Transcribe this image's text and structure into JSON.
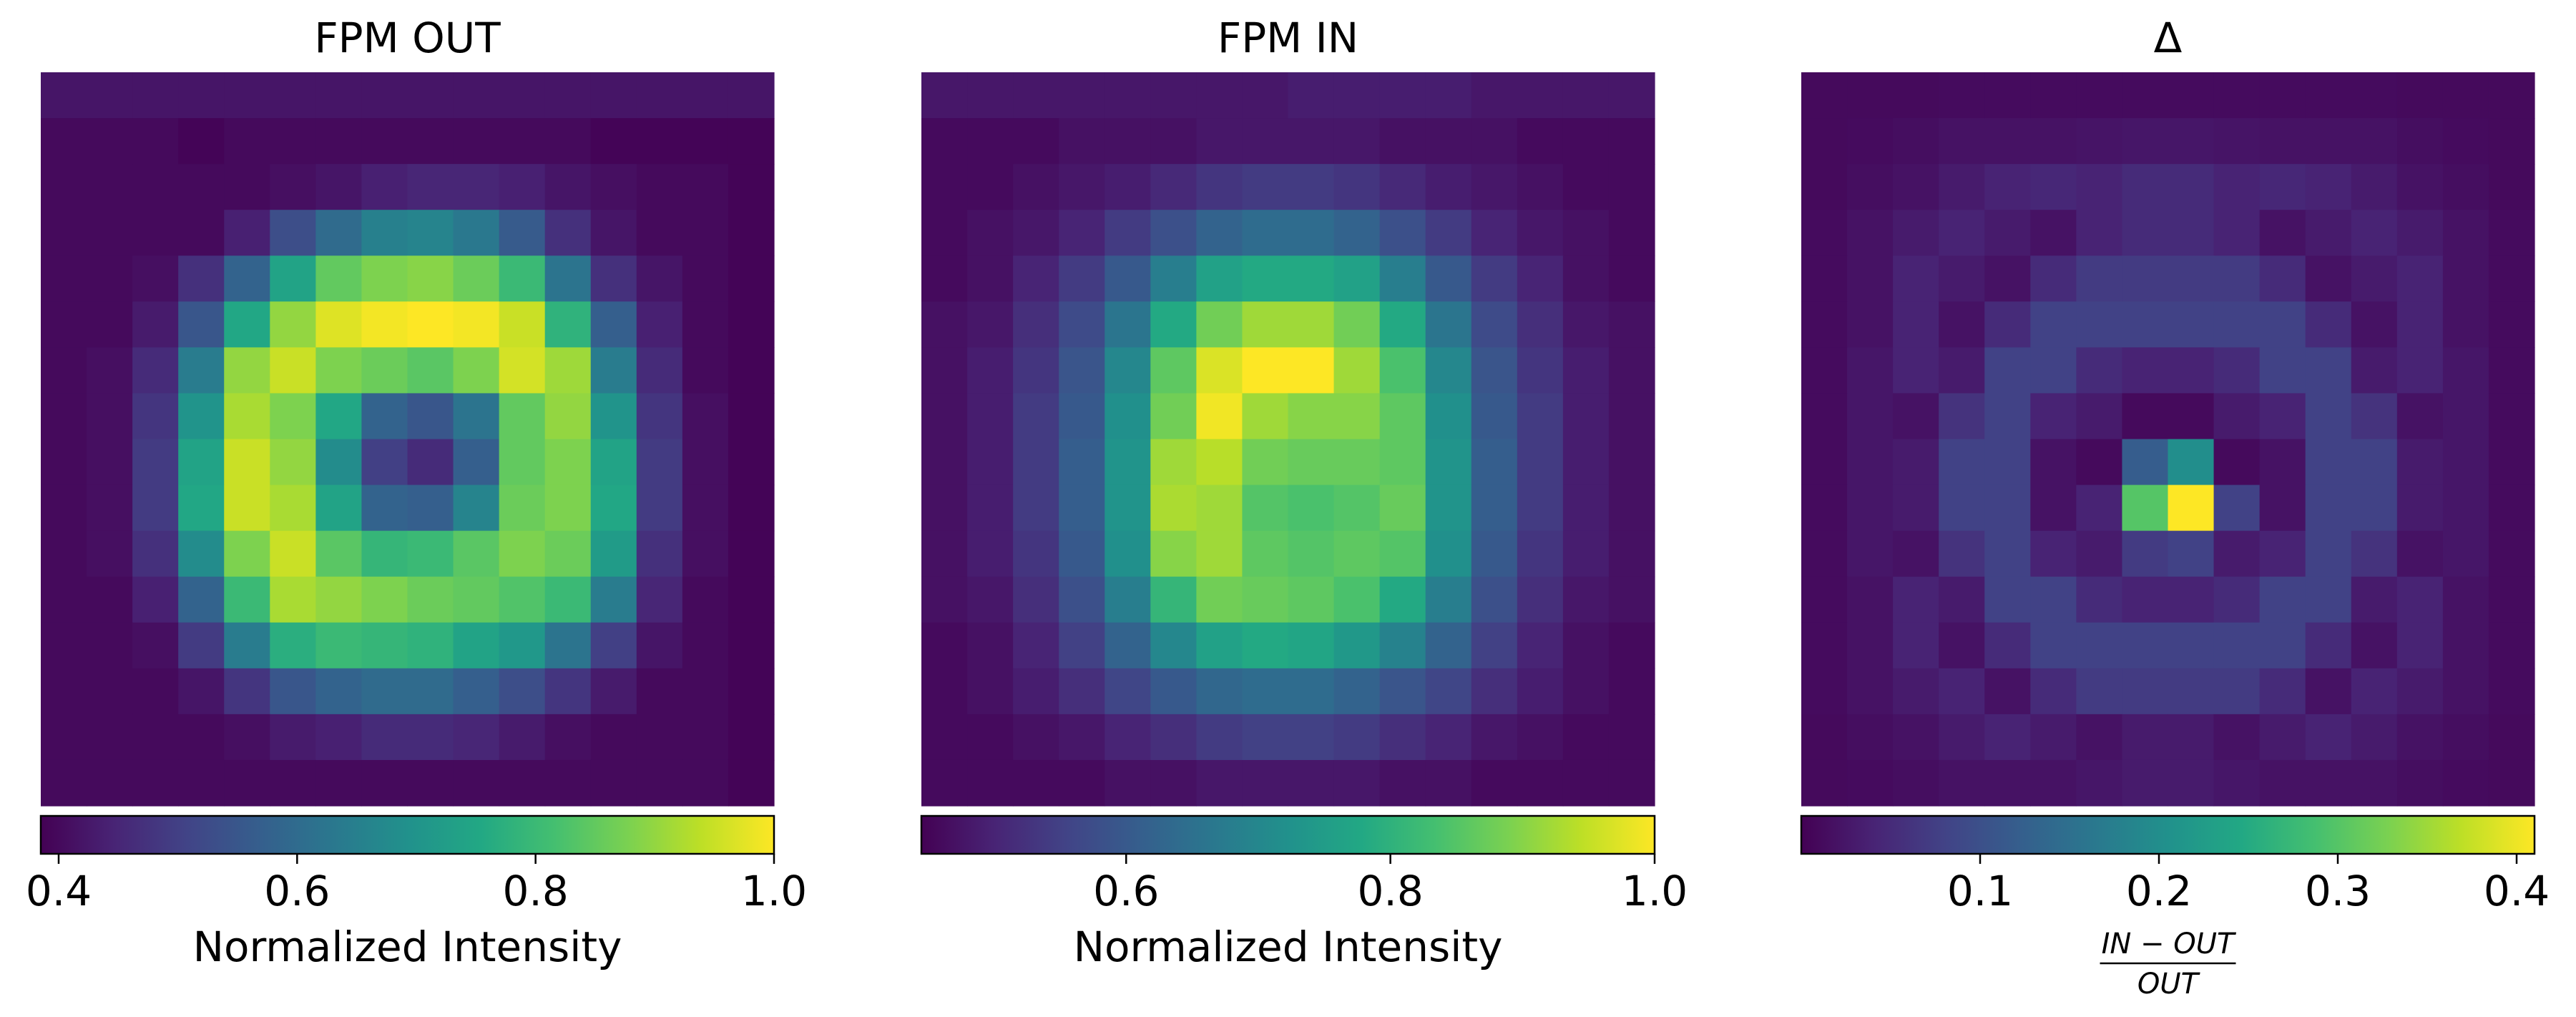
{
  "chart_data": [
    {
      "type": "heatmap",
      "title": "FPM OUT",
      "colormap": "viridis",
      "colorbar": {
        "label": "Normalized Intensity",
        "label_math": null,
        "vmin": 0.385,
        "vmax": 1.0,
        "ticks": [
          0.4,
          0.6,
          0.8,
          1.0
        ],
        "tick_labels": [
          "0.4",
          "0.6",
          "0.8",
          "1.0"
        ]
      },
      "grid": [
        [
          0.42,
          0.42,
          0.42,
          0.42,
          0.42,
          0.42,
          0.42,
          0.42,
          0.42,
          0.42,
          0.42,
          0.42,
          0.42,
          0.42,
          0.42,
          0.42
        ],
        [
          0.4,
          0.4,
          0.4,
          0.39,
          0.4,
          0.4,
          0.4,
          0.4,
          0.4,
          0.4,
          0.4,
          0.4,
          0.39,
          0.39,
          0.39,
          0.39
        ],
        [
          0.4,
          0.4,
          0.4,
          0.4,
          0.4,
          0.41,
          0.42,
          0.44,
          0.45,
          0.45,
          0.44,
          0.42,
          0.41,
          0.4,
          0.4,
          0.39
        ],
        [
          0.4,
          0.4,
          0.4,
          0.4,
          0.44,
          0.53,
          0.6,
          0.65,
          0.66,
          0.63,
          0.56,
          0.47,
          0.42,
          0.4,
          0.4,
          0.39
        ],
        [
          0.4,
          0.4,
          0.41,
          0.47,
          0.58,
          0.74,
          0.85,
          0.88,
          0.89,
          0.86,
          0.8,
          0.62,
          0.47,
          0.42,
          0.4,
          0.39
        ],
        [
          0.4,
          0.4,
          0.43,
          0.55,
          0.75,
          0.9,
          0.97,
          0.99,
          1.0,
          0.99,
          0.95,
          0.78,
          0.57,
          0.44,
          0.4,
          0.39
        ],
        [
          0.4,
          0.41,
          0.46,
          0.64,
          0.9,
          0.95,
          0.88,
          0.86,
          0.84,
          0.88,
          0.96,
          0.91,
          0.64,
          0.46,
          0.4,
          0.39
        ],
        [
          0.4,
          0.41,
          0.48,
          0.7,
          0.92,
          0.88,
          0.75,
          0.58,
          0.55,
          0.62,
          0.85,
          0.9,
          0.7,
          0.48,
          0.41,
          0.39
        ],
        [
          0.4,
          0.41,
          0.49,
          0.74,
          0.95,
          0.9,
          0.68,
          0.5,
          0.46,
          0.57,
          0.85,
          0.88,
          0.74,
          0.49,
          0.41,
          0.39
        ],
        [
          0.4,
          0.41,
          0.49,
          0.75,
          0.95,
          0.92,
          0.74,
          0.58,
          0.57,
          0.66,
          0.86,
          0.88,
          0.75,
          0.49,
          0.41,
          0.39
        ],
        [
          0.4,
          0.41,
          0.47,
          0.68,
          0.88,
          0.95,
          0.84,
          0.79,
          0.8,
          0.84,
          0.88,
          0.86,
          0.72,
          0.47,
          0.41,
          0.39
        ],
        [
          0.4,
          0.4,
          0.44,
          0.58,
          0.8,
          0.92,
          0.9,
          0.88,
          0.86,
          0.85,
          0.83,
          0.8,
          0.64,
          0.45,
          0.4,
          0.39
        ],
        [
          0.4,
          0.4,
          0.41,
          0.49,
          0.64,
          0.77,
          0.8,
          0.79,
          0.78,
          0.74,
          0.71,
          0.62,
          0.5,
          0.42,
          0.4,
          0.39
        ],
        [
          0.4,
          0.4,
          0.4,
          0.42,
          0.48,
          0.55,
          0.58,
          0.6,
          0.6,
          0.57,
          0.53,
          0.48,
          0.43,
          0.4,
          0.4,
          0.39
        ],
        [
          0.4,
          0.4,
          0.4,
          0.4,
          0.41,
          0.43,
          0.44,
          0.46,
          0.46,
          0.45,
          0.43,
          0.41,
          0.4,
          0.4,
          0.4,
          0.39
        ],
        [
          0.4,
          0.4,
          0.4,
          0.4,
          0.4,
          0.4,
          0.4,
          0.4,
          0.4,
          0.4,
          0.4,
          0.4,
          0.4,
          0.4,
          0.4,
          0.39
        ]
      ]
    },
    {
      "type": "heatmap",
      "title": "FPM IN",
      "colormap": "viridis",
      "colorbar": {
        "label": "Normalized Intensity",
        "label_math": null,
        "vmin": 0.445,
        "vmax": 1.0,
        "ticks": [
          0.6,
          0.8,
          1.0
        ],
        "tick_labels": [
          "0.6",
          "0.8",
          "1.0"
        ]
      },
      "grid": [
        [
          0.48,
          0.48,
          0.48,
          0.48,
          0.48,
          0.48,
          0.48,
          0.48,
          0.49,
          0.49,
          0.49,
          0.49,
          0.48,
          0.48,
          0.48,
          0.48
        ],
        [
          0.46,
          0.46,
          0.46,
          0.47,
          0.47,
          0.47,
          0.48,
          0.48,
          0.48,
          0.48,
          0.47,
          0.47,
          0.47,
          0.46,
          0.46,
          0.46
        ],
        [
          0.46,
          0.46,
          0.47,
          0.48,
          0.49,
          0.51,
          0.53,
          0.54,
          0.54,
          0.53,
          0.51,
          0.49,
          0.48,
          0.47,
          0.46,
          0.46
        ],
        [
          0.46,
          0.47,
          0.48,
          0.5,
          0.54,
          0.58,
          0.62,
          0.64,
          0.64,
          0.62,
          0.58,
          0.54,
          0.5,
          0.48,
          0.47,
          0.46
        ],
        [
          0.46,
          0.47,
          0.5,
          0.54,
          0.6,
          0.68,
          0.76,
          0.78,
          0.78,
          0.76,
          0.68,
          0.6,
          0.54,
          0.5,
          0.47,
          0.46
        ],
        [
          0.47,
          0.48,
          0.52,
          0.57,
          0.66,
          0.78,
          0.88,
          0.92,
          0.92,
          0.88,
          0.78,
          0.66,
          0.57,
          0.52,
          0.48,
          0.47
        ],
        [
          0.47,
          0.49,
          0.53,
          0.59,
          0.7,
          0.86,
          0.97,
          1.0,
          1.0,
          0.92,
          0.84,
          0.7,
          0.59,
          0.53,
          0.49,
          0.47
        ],
        [
          0.47,
          0.49,
          0.54,
          0.6,
          0.72,
          0.88,
          0.99,
          0.92,
          0.9,
          0.9,
          0.86,
          0.72,
          0.6,
          0.54,
          0.49,
          0.47
        ],
        [
          0.47,
          0.49,
          0.54,
          0.61,
          0.73,
          0.92,
          0.94,
          0.88,
          0.87,
          0.87,
          0.86,
          0.73,
          0.61,
          0.54,
          0.49,
          0.47
        ],
        [
          0.47,
          0.49,
          0.54,
          0.61,
          0.73,
          0.93,
          0.92,
          0.85,
          0.84,
          0.85,
          0.87,
          0.73,
          0.61,
          0.54,
          0.49,
          0.47
        ],
        [
          0.47,
          0.49,
          0.53,
          0.6,
          0.72,
          0.9,
          0.92,
          0.86,
          0.85,
          0.86,
          0.85,
          0.72,
          0.6,
          0.53,
          0.49,
          0.47
        ],
        [
          0.47,
          0.48,
          0.52,
          0.58,
          0.68,
          0.81,
          0.88,
          0.87,
          0.86,
          0.84,
          0.78,
          0.68,
          0.58,
          0.52,
          0.48,
          0.47
        ],
        [
          0.46,
          0.47,
          0.5,
          0.55,
          0.62,
          0.7,
          0.76,
          0.78,
          0.77,
          0.74,
          0.69,
          0.62,
          0.55,
          0.5,
          0.47,
          0.46
        ],
        [
          0.46,
          0.47,
          0.49,
          0.52,
          0.56,
          0.6,
          0.63,
          0.64,
          0.64,
          0.62,
          0.59,
          0.56,
          0.52,
          0.49,
          0.47,
          0.46
        ],
        [
          0.46,
          0.46,
          0.47,
          0.48,
          0.5,
          0.52,
          0.54,
          0.55,
          0.55,
          0.54,
          0.52,
          0.5,
          0.48,
          0.47,
          0.46,
          0.46
        ],
        [
          0.46,
          0.46,
          0.46,
          0.46,
          0.47,
          0.47,
          0.48,
          0.48,
          0.48,
          0.48,
          0.47,
          0.47,
          0.46,
          0.46,
          0.46,
          0.46
        ]
      ]
    },
    {
      "type": "heatmap",
      "title": "Δ",
      "colormap": "viridis",
      "colorbar": {
        "label": "",
        "label_math": {
          "numerator": "IN − OUT",
          "denominator": "OUT"
        },
        "vmin": 0.0,
        "vmax": 0.41,
        "ticks": [
          0.1,
          0.2,
          0.3,
          0.4
        ],
        "tick_labels": [
          "0.1",
          "0.2",
          "0.3",
          "0.4"
        ]
      },
      "grid": [
        [
          0.01,
          0.01,
          0.01,
          0.012,
          0.012,
          0.012,
          0.012,
          0.012,
          0.012,
          0.012,
          0.012,
          0.012,
          0.012,
          0.01,
          0.01,
          0.01
        ],
        [
          0.01,
          0.012,
          0.015,
          0.02,
          0.02,
          0.02,
          0.022,
          0.025,
          0.025,
          0.022,
          0.02,
          0.02,
          0.02,
          0.015,
          0.012,
          0.01
        ],
        [
          0.01,
          0.015,
          0.02,
          0.03,
          0.04,
          0.045,
          0.04,
          0.05,
          0.05,
          0.04,
          0.045,
          0.04,
          0.03,
          0.02,
          0.015,
          0.01
        ],
        [
          0.012,
          0.02,
          0.03,
          0.04,
          0.03,
          0.02,
          0.04,
          0.05,
          0.05,
          0.04,
          0.02,
          0.03,
          0.04,
          0.03,
          0.02,
          0.012
        ],
        [
          0.012,
          0.02,
          0.04,
          0.03,
          0.02,
          0.05,
          0.07,
          0.07,
          0.07,
          0.07,
          0.05,
          0.02,
          0.03,
          0.04,
          0.02,
          0.012
        ],
        [
          0.012,
          0.02,
          0.04,
          0.02,
          0.05,
          0.08,
          0.08,
          0.08,
          0.08,
          0.08,
          0.08,
          0.05,
          0.02,
          0.04,
          0.02,
          0.012
        ],
        [
          0.012,
          0.025,
          0.04,
          0.03,
          0.08,
          0.08,
          0.05,
          0.04,
          0.04,
          0.05,
          0.08,
          0.08,
          0.03,
          0.04,
          0.025,
          0.012
        ],
        [
          0.012,
          0.025,
          0.02,
          0.06,
          0.08,
          0.04,
          0.03,
          0.01,
          0.01,
          0.03,
          0.04,
          0.08,
          0.06,
          0.02,
          0.025,
          0.012
        ],
        [
          0.012,
          0.025,
          0.03,
          0.08,
          0.08,
          0.02,
          0.01,
          0.12,
          0.2,
          0.01,
          0.02,
          0.08,
          0.08,
          0.03,
          0.025,
          0.012
        ],
        [
          0.012,
          0.025,
          0.03,
          0.08,
          0.08,
          0.02,
          0.04,
          0.3,
          0.41,
          0.08,
          0.02,
          0.08,
          0.08,
          0.03,
          0.025,
          0.012
        ],
        [
          0.012,
          0.025,
          0.02,
          0.06,
          0.08,
          0.04,
          0.03,
          0.07,
          0.08,
          0.03,
          0.04,
          0.08,
          0.06,
          0.02,
          0.025,
          0.012
        ],
        [
          0.012,
          0.02,
          0.04,
          0.03,
          0.08,
          0.08,
          0.05,
          0.04,
          0.04,
          0.05,
          0.08,
          0.08,
          0.03,
          0.04,
          0.02,
          0.012
        ],
        [
          0.012,
          0.02,
          0.04,
          0.02,
          0.05,
          0.08,
          0.08,
          0.08,
          0.08,
          0.08,
          0.08,
          0.05,
          0.02,
          0.04,
          0.02,
          0.012
        ],
        [
          0.012,
          0.02,
          0.03,
          0.04,
          0.02,
          0.05,
          0.07,
          0.07,
          0.07,
          0.07,
          0.05,
          0.02,
          0.04,
          0.03,
          0.02,
          0.012
        ],
        [
          0.01,
          0.015,
          0.02,
          0.03,
          0.04,
          0.03,
          0.02,
          0.03,
          0.03,
          0.02,
          0.03,
          0.04,
          0.03,
          0.02,
          0.015,
          0.01
        ],
        [
          0.01,
          0.012,
          0.015,
          0.02,
          0.02,
          0.02,
          0.025,
          0.03,
          0.03,
          0.025,
          0.02,
          0.02,
          0.02,
          0.015,
          0.012,
          0.01
        ]
      ]
    }
  ]
}
